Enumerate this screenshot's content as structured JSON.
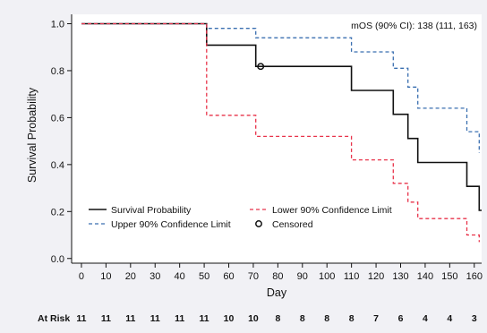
{
  "chart_data": {
    "type": "line",
    "title": "",
    "xlabel": "Day",
    "ylabel": "Survival Probability",
    "xlim": [
      -4,
      163
    ],
    "ylim": [
      -0.02,
      1.04
    ],
    "x_ticks": [
      0,
      10,
      20,
      30,
      40,
      50,
      60,
      70,
      80,
      90,
      100,
      110,
      120,
      130,
      140,
      150,
      160
    ],
    "y_ticks": [
      0.0,
      0.2,
      0.4,
      0.6,
      0.8,
      1.0
    ],
    "y_tick_labels": [
      "0.0",
      "0.2",
      "0.4",
      "0.6",
      "0.8",
      "1.0"
    ],
    "grid": false,
    "annotation": "mOS (90% CI): 138 (111, 163)",
    "colors": {
      "survival": "#111111",
      "upper": "#3a6fb0",
      "lower": "#e8334a",
      "background": "#f1f1f5"
    },
    "series": [
      {
        "name": "Survival Probability",
        "style": "solid",
        "x": [
          0,
          51,
          51,
          71,
          71,
          110,
          110,
          127,
          127,
          133,
          133,
          137,
          137,
          157,
          157,
          162,
          162,
          163
        ],
        "y": [
          1.0,
          1.0,
          0.909,
          0.909,
          0.818,
          0.818,
          0.716,
          0.716,
          0.614,
          0.614,
          0.511,
          0.511,
          0.409,
          0.409,
          0.307,
          0.307,
          0.205,
          0.205
        ]
      },
      {
        "name": "Upper 90% Confidence Limit",
        "style": "dashed",
        "x": [
          0,
          51,
          51,
          71,
          71,
          110,
          110,
          127,
          127,
          133,
          133,
          137,
          137,
          157,
          157,
          162,
          162
        ],
        "y": [
          1.0,
          1.0,
          0.98,
          0.98,
          0.94,
          0.94,
          0.88,
          0.88,
          0.81,
          0.81,
          0.73,
          0.73,
          0.64,
          0.64,
          0.54,
          0.54,
          0.45
        ]
      },
      {
        "name": "Lower 90% Confidence Limit",
        "style": "dashed",
        "x": [
          0,
          51,
          51,
          71,
          71,
          110,
          110,
          127,
          127,
          133,
          133,
          137,
          137,
          157,
          157,
          162,
          162
        ],
        "y": [
          1.0,
          1.0,
          0.61,
          0.61,
          0.52,
          0.52,
          0.42,
          0.42,
          0.32,
          0.32,
          0.24,
          0.24,
          0.17,
          0.17,
          0.1,
          0.1,
          0.07
        ]
      }
    ],
    "censored": {
      "name": "Censored",
      "x": [
        73
      ],
      "y": [
        0.818
      ]
    },
    "legend": {
      "position": "lower-left",
      "items": [
        {
          "label": "Survival Probability",
          "key": "survival",
          "style": "solid"
        },
        {
          "label": "Lower 90% Confidence Limit",
          "key": "lower",
          "style": "dashed"
        },
        {
          "label": "Upper 90% Confidence Limit",
          "key": "upper",
          "style": "dashed"
        },
        {
          "label": "Censored",
          "key": "censored",
          "style": "marker"
        }
      ]
    },
    "at_risk": {
      "label": "At Risk",
      "x": [
        0,
        10,
        20,
        30,
        40,
        50,
        60,
        70,
        80,
        90,
        100,
        110,
        120,
        130,
        140,
        150,
        160
      ],
      "values": [
        "11",
        "11",
        "11",
        "11",
        "11",
        "11",
        "10",
        "10",
        "8",
        "8",
        "8",
        "8",
        "7",
        "6",
        "4",
        "4",
        "3"
      ]
    }
  }
}
